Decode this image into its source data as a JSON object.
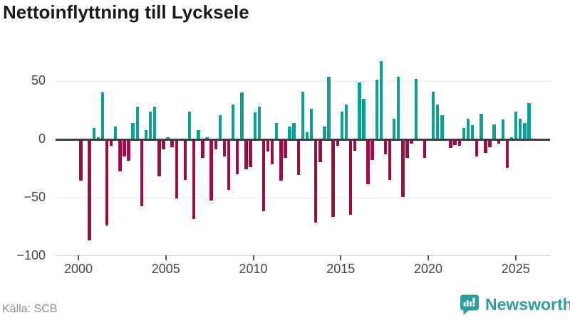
{
  "title": "Nettoinflyttning till Lycksele",
  "source": "Källa: SCB",
  "branding": {
    "logo_text": "Newsworthy",
    "logo_color": "#2e9d9d"
  },
  "colors": {
    "positive": "#0d9e96",
    "negative": "#9b0d47",
    "zero_line": "#3d3d3d",
    "gridline": "#e8e8e8",
    "axis_text": "#474747",
    "title_text": "#1a1a1a",
    "source_text": "#8d8d96"
  },
  "chart_data": {
    "type": "bar",
    "title": "Nettoinflyttning till Lycksele",
    "xlabel": "",
    "ylabel": "",
    "x_unit": "quarter",
    "start_period": "2000-Q1",
    "end_period": "2025-Q4",
    "start_year": 2000,
    "periods_per_year": 4,
    "values": [
      -35,
      0,
      -86,
      10,
      2,
      40,
      -73,
      -5,
      11,
      -27,
      -14,
      -18,
      14,
      28,
      -57,
      8,
      24,
      28,
      -31,
      -8,
      2,
      -6,
      -50,
      0,
      -34,
      24,
      -68,
      8,
      -15,
      2,
      -52,
      -8,
      21,
      -14,
      -43,
      30,
      -29,
      40,
      -25,
      -23,
      23,
      28,
      -61,
      -10,
      -21,
      14,
      -35,
      -15,
      11,
      14,
      -30,
      41,
      6,
      26,
      -71,
      -19,
      11,
      54,
      -66,
      -5,
      24,
      30,
      -64,
      -9,
      49,
      35,
      -38,
      -17,
      51,
      67,
      -12,
      -34,
      18,
      54,
      -49,
      -15,
      -3,
      52,
      0,
      -15,
      0,
      41,
      30,
      21,
      0,
      -7,
      -4,
      -5,
      10,
      18,
      12,
      -14,
      22,
      -11,
      -6,
      13,
      -3,
      17,
      -24,
      2,
      24,
      18,
      14,
      31
    ],
    "x_ticks": [
      2000,
      2005,
      2010,
      2015,
      2020,
      2025
    ],
    "x_tick_labels": [
      "2000",
      "2005",
      "2010",
      "2015",
      "2020",
      "2025"
    ],
    "y_ticks": [
      50,
      0,
      -50,
      -100
    ],
    "y_tick_labels": [
      "50",
      "0",
      "−50",
      "−100"
    ],
    "ylim": [
      -100,
      70
    ],
    "grid": true,
    "legend": "none"
  }
}
